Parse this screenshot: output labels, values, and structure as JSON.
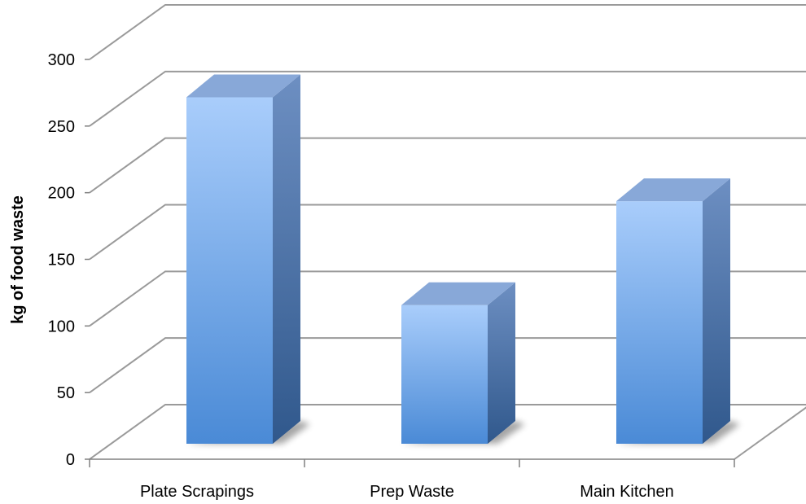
{
  "chart_data": {
    "type": "bar",
    "style": "3d-column",
    "categories": [
      "Plate Scrapings",
      "Prep Waste",
      "Main Kitchen"
    ],
    "values": [
      260,
      104,
      182
    ],
    "title": "",
    "xlabel": "",
    "ylabel": "kg of food waste",
    "ylim": [
      0,
      300
    ],
    "yticks": [
      "0",
      "50",
      "100",
      "150",
      "200",
      "250",
      "300"
    ],
    "grid": true,
    "legend": "none",
    "colors": {
      "bar_front_top": "#a9cdfb",
      "bar_front_bottom": "#4a8ad6",
      "bar_side_top": "#6d8fc2",
      "bar_side_bottom": "#30588c",
      "bar_top": "#88a8d8",
      "grid": "#9a9a9a",
      "axis": "#808080"
    }
  }
}
